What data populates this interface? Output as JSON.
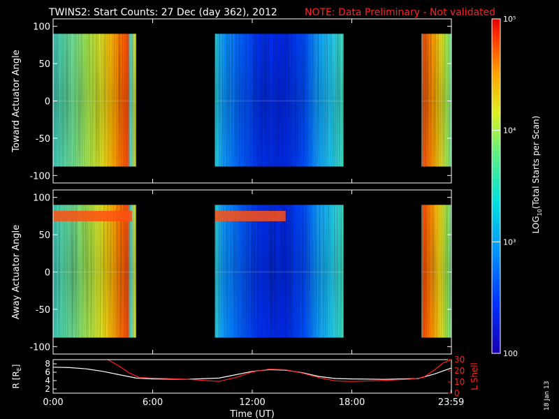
{
  "title": "TWINS2: Start Counts: 27 Dec (day 362), 2012",
  "note": "NOTE: Data Preliminary - Not validated",
  "colors": {
    "note": "#ff2020",
    "lshell": "#ff2020",
    "r": "#ffffff"
  },
  "colorbar": {
    "label_prefix": "LOG",
    "label_sub": "10",
    "label_suffix": "(Total Starts per Scan)",
    "ticks": [
      {
        "value": 100,
        "label": "100"
      },
      {
        "value": 1000,
        "label": "10³"
      },
      {
        "value": 10000,
        "label": "10⁴"
      },
      {
        "value": 100000,
        "label": "10⁵"
      }
    ],
    "range": [
      100,
      100000
    ]
  },
  "date_stamp": "18 Jan 13",
  "chart_data": [
    {
      "type": "heatmap",
      "name": "toward",
      "ylabel": "Toward Actuator Angle",
      "ylim": [
        -110,
        110
      ],
      "yticks": [
        100,
        50,
        0,
        -50,
        -100
      ],
      "xlim": [
        0,
        24
      ],
      "data_range_y": [
        -88,
        90
      ],
      "segments": [
        {
          "start": 0.0,
          "end": 5.0
        },
        {
          "start": 9.75,
          "end": 17.5
        },
        {
          "start": 22.2,
          "end": 24.0
        }
      ]
    },
    {
      "type": "heatmap",
      "name": "away",
      "ylabel": "Away Actuator Angle",
      "ylim": [
        -110,
        110
      ],
      "yticks": [
        100,
        50,
        0,
        -50,
        -100
      ],
      "xlim": [
        0,
        24
      ],
      "data_range_y": [
        -88,
        90
      ],
      "segments": [
        {
          "start": 0.0,
          "end": 5.0
        },
        {
          "start": 9.75,
          "end": 17.5
        },
        {
          "start": 22.2,
          "end": 24.0
        }
      ]
    },
    {
      "type": "line",
      "name": "orbit",
      "xlabel": "Time (UT)",
      "ylabel_left": "R [R",
      "ylabel_left_sub": "E",
      "ylabel_left_end": "]",
      "ylabel_right": "L Shell",
      "xlim": [
        0,
        24
      ],
      "xticks": [
        {
          "v": 0,
          "label": "0:00"
        },
        {
          "v": 6,
          "label": "6:00"
        },
        {
          "v": 12,
          "label": "12:00"
        },
        {
          "v": 18,
          "label": "18:00"
        },
        {
          "v": 23.983,
          "label": "23:59"
        }
      ],
      "ylim_left": [
        1,
        9
      ],
      "yticks_left": [
        2,
        4,
        6,
        8
      ],
      "ylim_right": [
        0,
        30
      ],
      "yticks_right": [
        0,
        10,
        20,
        30
      ],
      "series": [
        {
          "name": "R",
          "axis": "left",
          "x": [
            0,
            1,
            2,
            3,
            4,
            5,
            6,
            8,
            10,
            11,
            12,
            13,
            14,
            15,
            16,
            17,
            18,
            20,
            22,
            23,
            24
          ],
          "y": [
            7.2,
            7.1,
            6.8,
            6.2,
            5.4,
            4.6,
            4.4,
            4.3,
            4.6,
            5.4,
            6.2,
            6.6,
            6.5,
            5.9,
            5.0,
            4.5,
            4.4,
            4.3,
            4.5,
            5.6,
            7.0
          ]
        },
        {
          "name": "L Shell",
          "axis": "right",
          "x": [
            3.3,
            4.0,
            4.6,
            5.2,
            6,
            8,
            10,
            11,
            12,
            13,
            14,
            15,
            16,
            17,
            18,
            20,
            21.5,
            22.3,
            23,
            23.5,
            24
          ],
          "y": [
            30,
            24,
            18,
            14,
            13.5,
            12.5,
            10.5,
            14,
            19,
            21.5,
            21,
            18,
            14,
            11,
            10.5,
            11.5,
            12.5,
            14,
            21,
            27,
            30
          ]
        }
      ]
    }
  ]
}
